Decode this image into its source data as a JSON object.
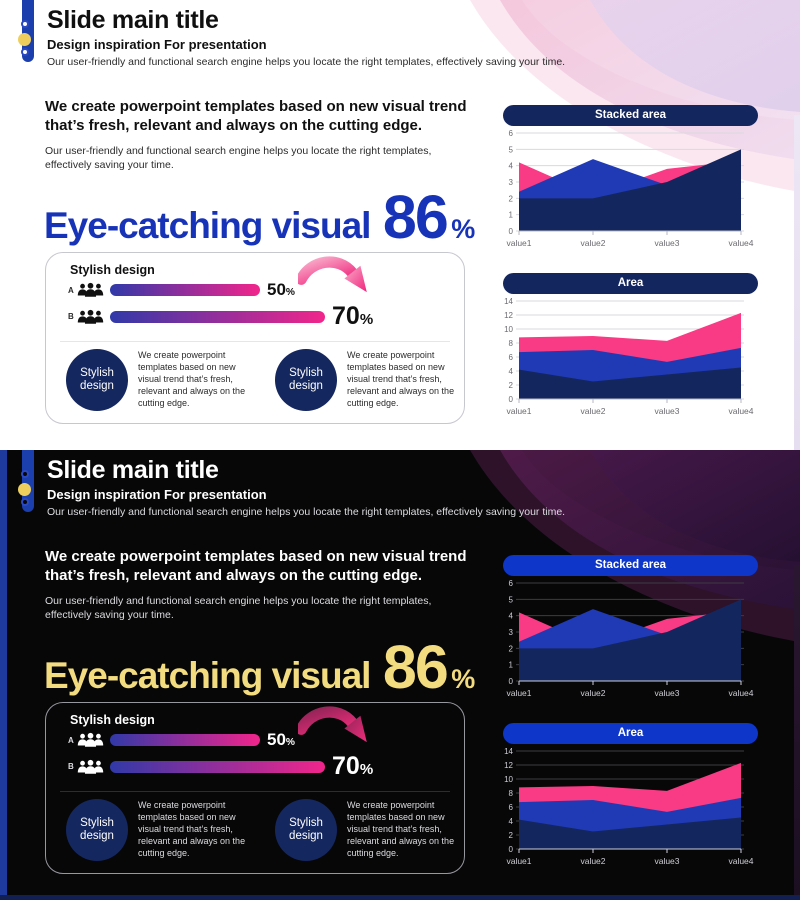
{
  "colors": {
    "navy": "#14265e",
    "blue": "#1f3ab4",
    "pink": "#f93a84",
    "royal_bar": "#1c3fae",
    "pill_bright": "#0e36c8",
    "yellow_dot": "#eecf5e",
    "accent_blue": "#1733b8",
    "accent_yellow": "#f3dc80",
    "bar_gradient_start": "#3039a8",
    "bar_gradient_end": "#f1258b",
    "circle_navy": "#15275f"
  },
  "content": {
    "title": "Slide main title",
    "subtitle": "Design inspiration For presentation",
    "header_body": "Our user-friendly and functional search engine helps you locate the right templates, effectively saving your time.",
    "heading_line1": "We create powerpoint templates based on new visual trend",
    "heading_line2": "that’s fresh, relevant and always on the cutting edge.",
    "paragraph_line1": "Our user-friendly and functional search engine helps you locate the right templates,",
    "paragraph_line2": "effectively saving your time.",
    "visual_label": "Eye-catching visual",
    "visual_value": "86",
    "visual_unit": "%",
    "card": {
      "title": "Stylish design",
      "rows": [
        {
          "label": "A",
          "value": "50",
          "unit": "%"
        },
        {
          "label": "B",
          "value": "70",
          "unit": "%"
        }
      ],
      "features": [
        {
          "circle_label": "Stylish design",
          "description": "We create powerpoint templates based on new visual trend that’s fresh, relevant and always on the cutting edge."
        },
        {
          "circle_label": "Stylish design",
          "description": "We create powerpoint templates based on new visual trend that’s fresh, relevant and always on the cutting edge."
        }
      ]
    }
  },
  "chart_data": [
    {
      "type": "area",
      "style": "overlapping-areas (drawn back-to-front: pink, blue, navy)",
      "title": "Stacked area",
      "x": [
        "value1",
        "value2",
        "value3",
        "value4"
      ],
      "xlabel": "",
      "ylabel": "",
      "ylim": [
        0,
        6
      ],
      "yticks": [
        0,
        1,
        2,
        3,
        4,
        5,
        6
      ],
      "grid": true,
      "legend": false,
      "series": [
        {
          "name": "pink area",
          "color": "#f93a84",
          "values": [
            4.2,
            2.2,
            3.8,
            4.3
          ]
        },
        {
          "name": "blue area",
          "color": "#1f3ab4",
          "values": [
            2.4,
            4.4,
            2.8,
            3.0
          ]
        },
        {
          "name": "navy area",
          "color": "#14265e",
          "values": [
            2.0,
            2.0,
            3.0,
            5.0
          ]
        }
      ]
    },
    {
      "type": "area",
      "style": "stacked (values are cumulative band tops; drawn back-to-front: pink, blue, navy)",
      "title": "Area",
      "x": [
        "value1",
        "value2",
        "value3",
        "value4"
      ],
      "xlabel": "",
      "ylabel": "",
      "ylim": [
        0,
        14
      ],
      "yticks": [
        0,
        2,
        4,
        6,
        8,
        10,
        12,
        14
      ],
      "grid": true,
      "legend": false,
      "series": [
        {
          "name": "pink band top",
          "color": "#f93a84",
          "values": [
            8.8,
            9.0,
            8.3,
            12.3
          ]
        },
        {
          "name": "blue band top",
          "color": "#1f3ab4",
          "values": [
            6.7,
            7.0,
            5.3,
            7.3
          ]
        },
        {
          "name": "navy band top",
          "color": "#14265e",
          "values": [
            4.2,
            2.5,
            3.5,
            4.5
          ]
        }
      ]
    }
  ]
}
